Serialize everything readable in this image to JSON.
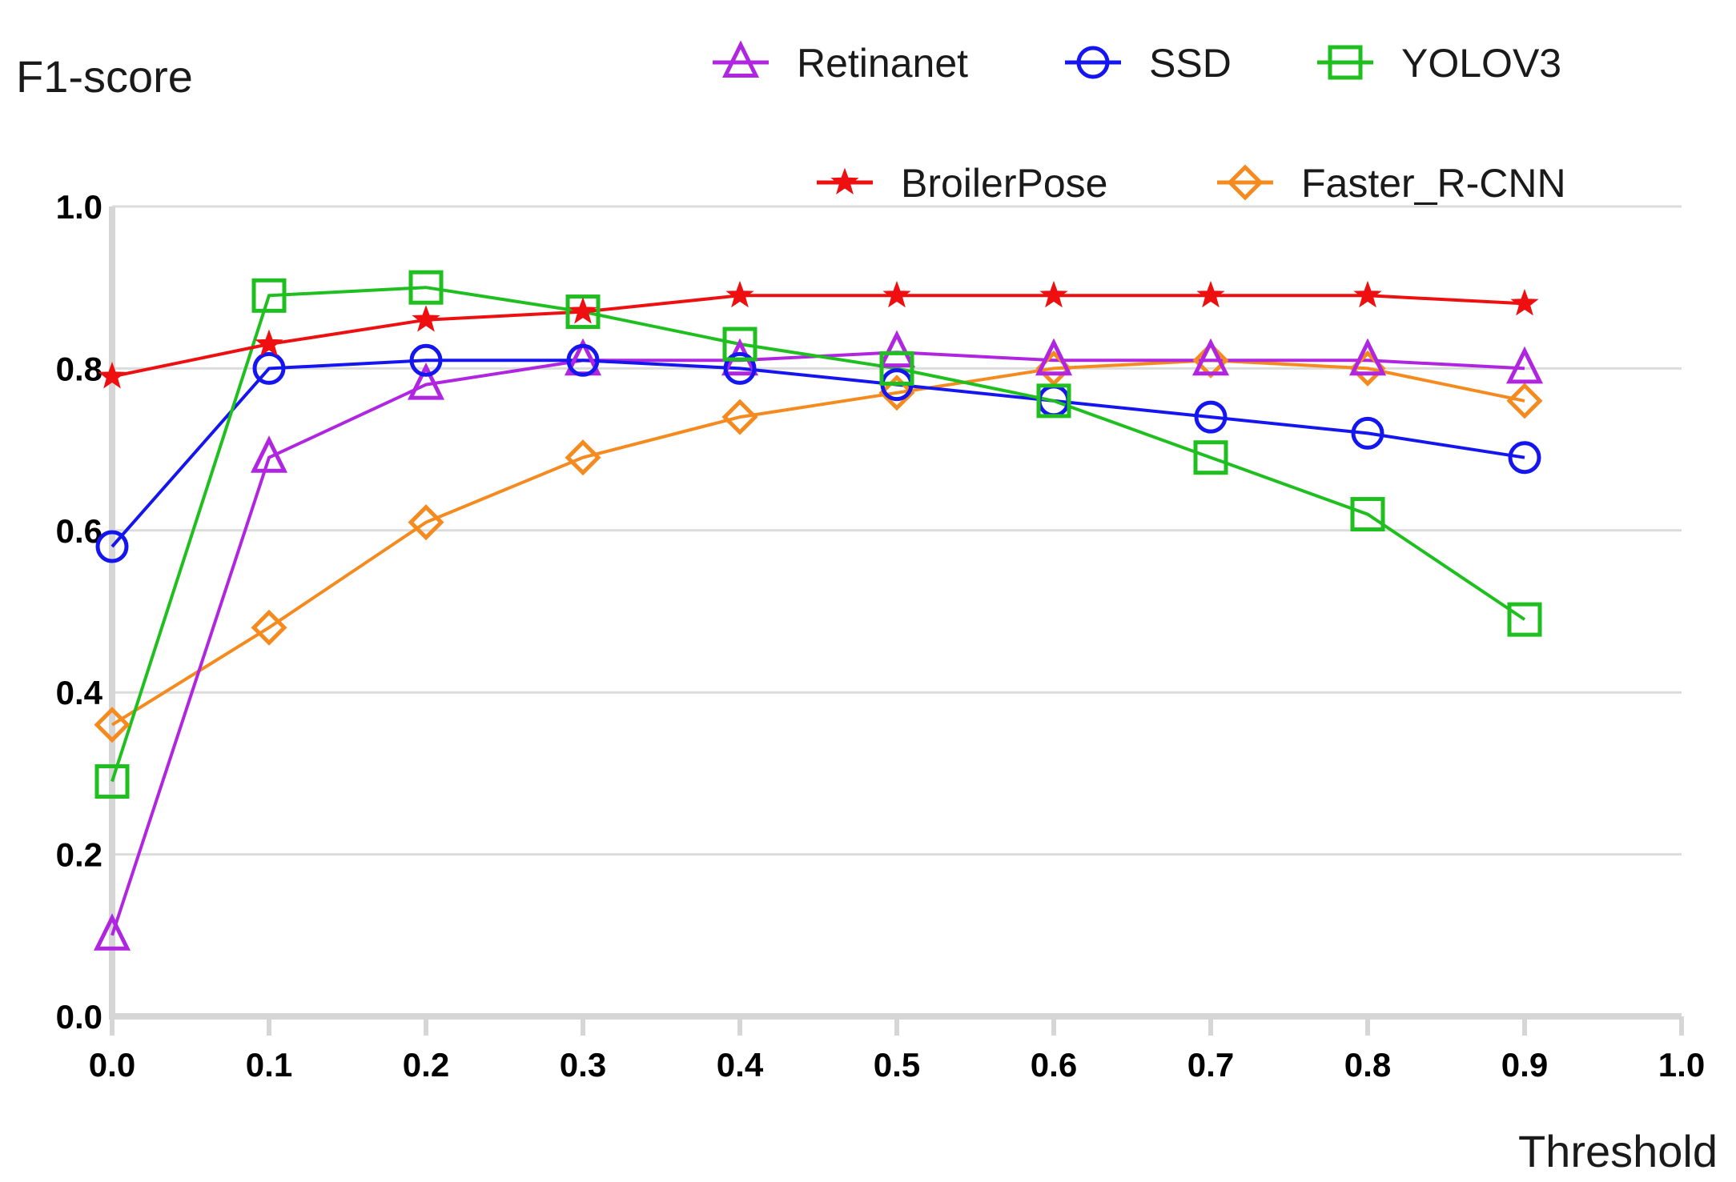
{
  "chart_data": {
    "type": "line",
    "title": "",
    "ylabel": "F1-score",
    "xlabel": "Threshold",
    "xlim": [
      0.0,
      1.0
    ],
    "ylim": [
      0.0,
      1.0
    ],
    "x_ticks": [
      "0.0",
      "0.1",
      "0.2",
      "0.3",
      "0.4",
      "0.5",
      "0.6",
      "0.7",
      "0.8",
      "0.9",
      "1.0"
    ],
    "y_ticks": [
      "0.0",
      "0.2",
      "0.4",
      "0.6",
      "0.8",
      "1.0"
    ],
    "grid": true,
    "legend_position": "top-right",
    "x": [
      0.0,
      0.1,
      0.2,
      0.3,
      0.4,
      0.5,
      0.6,
      0.7,
      0.8,
      0.9
    ],
    "series": [
      {
        "name": "Retinanet",
        "color": "#b026e0",
        "marker": "triangle",
        "values": [
          0.1,
          0.69,
          0.78,
          0.81,
          0.81,
          0.82,
          0.81,
          0.81,
          0.81,
          0.8
        ]
      },
      {
        "name": "SSD",
        "color": "#1515f0",
        "marker": "circle",
        "values": [
          0.58,
          0.8,
          0.81,
          0.81,
          0.8,
          0.78,
          0.76,
          0.74,
          0.72,
          0.69
        ]
      },
      {
        "name": "YOLOV3",
        "color": "#1fbf1f",
        "marker": "square",
        "values": [
          0.29,
          0.89,
          0.9,
          0.87,
          0.83,
          0.8,
          0.76,
          0.69,
          0.62,
          0.49
        ]
      },
      {
        "name": "BroilerPose",
        "color": "#ee1010",
        "marker": "star",
        "values": [
          0.79,
          0.83,
          0.86,
          0.87,
          0.89,
          0.89,
          0.89,
          0.89,
          0.89,
          0.88
        ]
      },
      {
        "name": "Faster_R-CNN",
        "color": "#f58a1f",
        "marker": "diamond",
        "values": [
          0.36,
          0.48,
          0.61,
          0.69,
          0.74,
          0.77,
          0.8,
          0.81,
          0.8,
          0.76
        ]
      }
    ]
  }
}
